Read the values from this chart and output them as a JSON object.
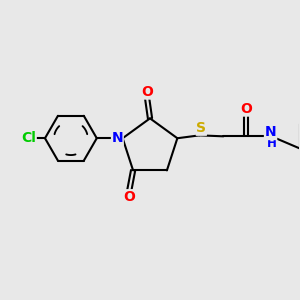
{
  "background_color": "#e8e8e8",
  "atom_colors": {
    "C": "#000000",
    "N": "#0000ff",
    "O": "#ff0000",
    "S": "#ccaa00",
    "Cl": "#00cc00",
    "H": "#0000ff"
  },
  "bond_color": "#000000",
  "bond_width": 1.5,
  "font_size": 10,
  "figsize": [
    3.0,
    3.0
  ],
  "dpi": 100
}
